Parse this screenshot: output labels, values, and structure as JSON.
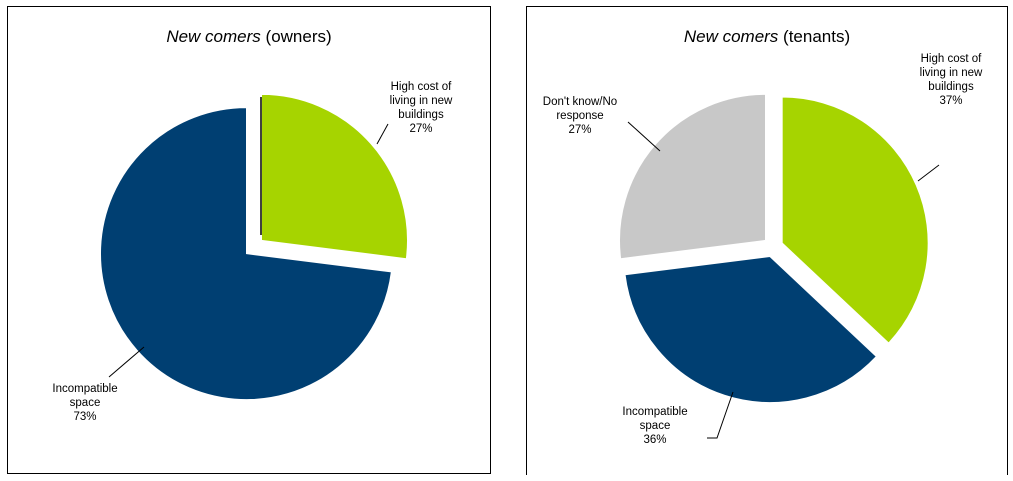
{
  "chart_data": [
    {
      "type": "pie",
      "title": "New comers (owners)",
      "title_italic": "New comers",
      "title_rest": "(owners)",
      "slices": [
        {
          "label": [
            "High cost of",
            "living in new",
            "buildings",
            "27%"
          ],
          "value": 27,
          "color": "#a6d400"
        },
        {
          "label": [
            "Incompatible",
            "space",
            "73%"
          ],
          "value": 73,
          "color": "#003f72"
        }
      ]
    },
    {
      "type": "pie",
      "title": "New comers (tenants)",
      "title_italic": "New comers",
      "title_rest": "(tenants)",
      "slices": [
        {
          "label": [
            "High cost of",
            "living in new",
            "buildings",
            "37%"
          ],
          "value": 37,
          "color": "#a6d400"
        },
        {
          "label": [
            "Incompatible",
            "space",
            "36%"
          ],
          "value": 36,
          "color": "#003f72"
        },
        {
          "label": [
            "Don't know/No",
            "response",
            "27%"
          ],
          "value": 27,
          "color": "#c8c8c8"
        }
      ]
    }
  ]
}
